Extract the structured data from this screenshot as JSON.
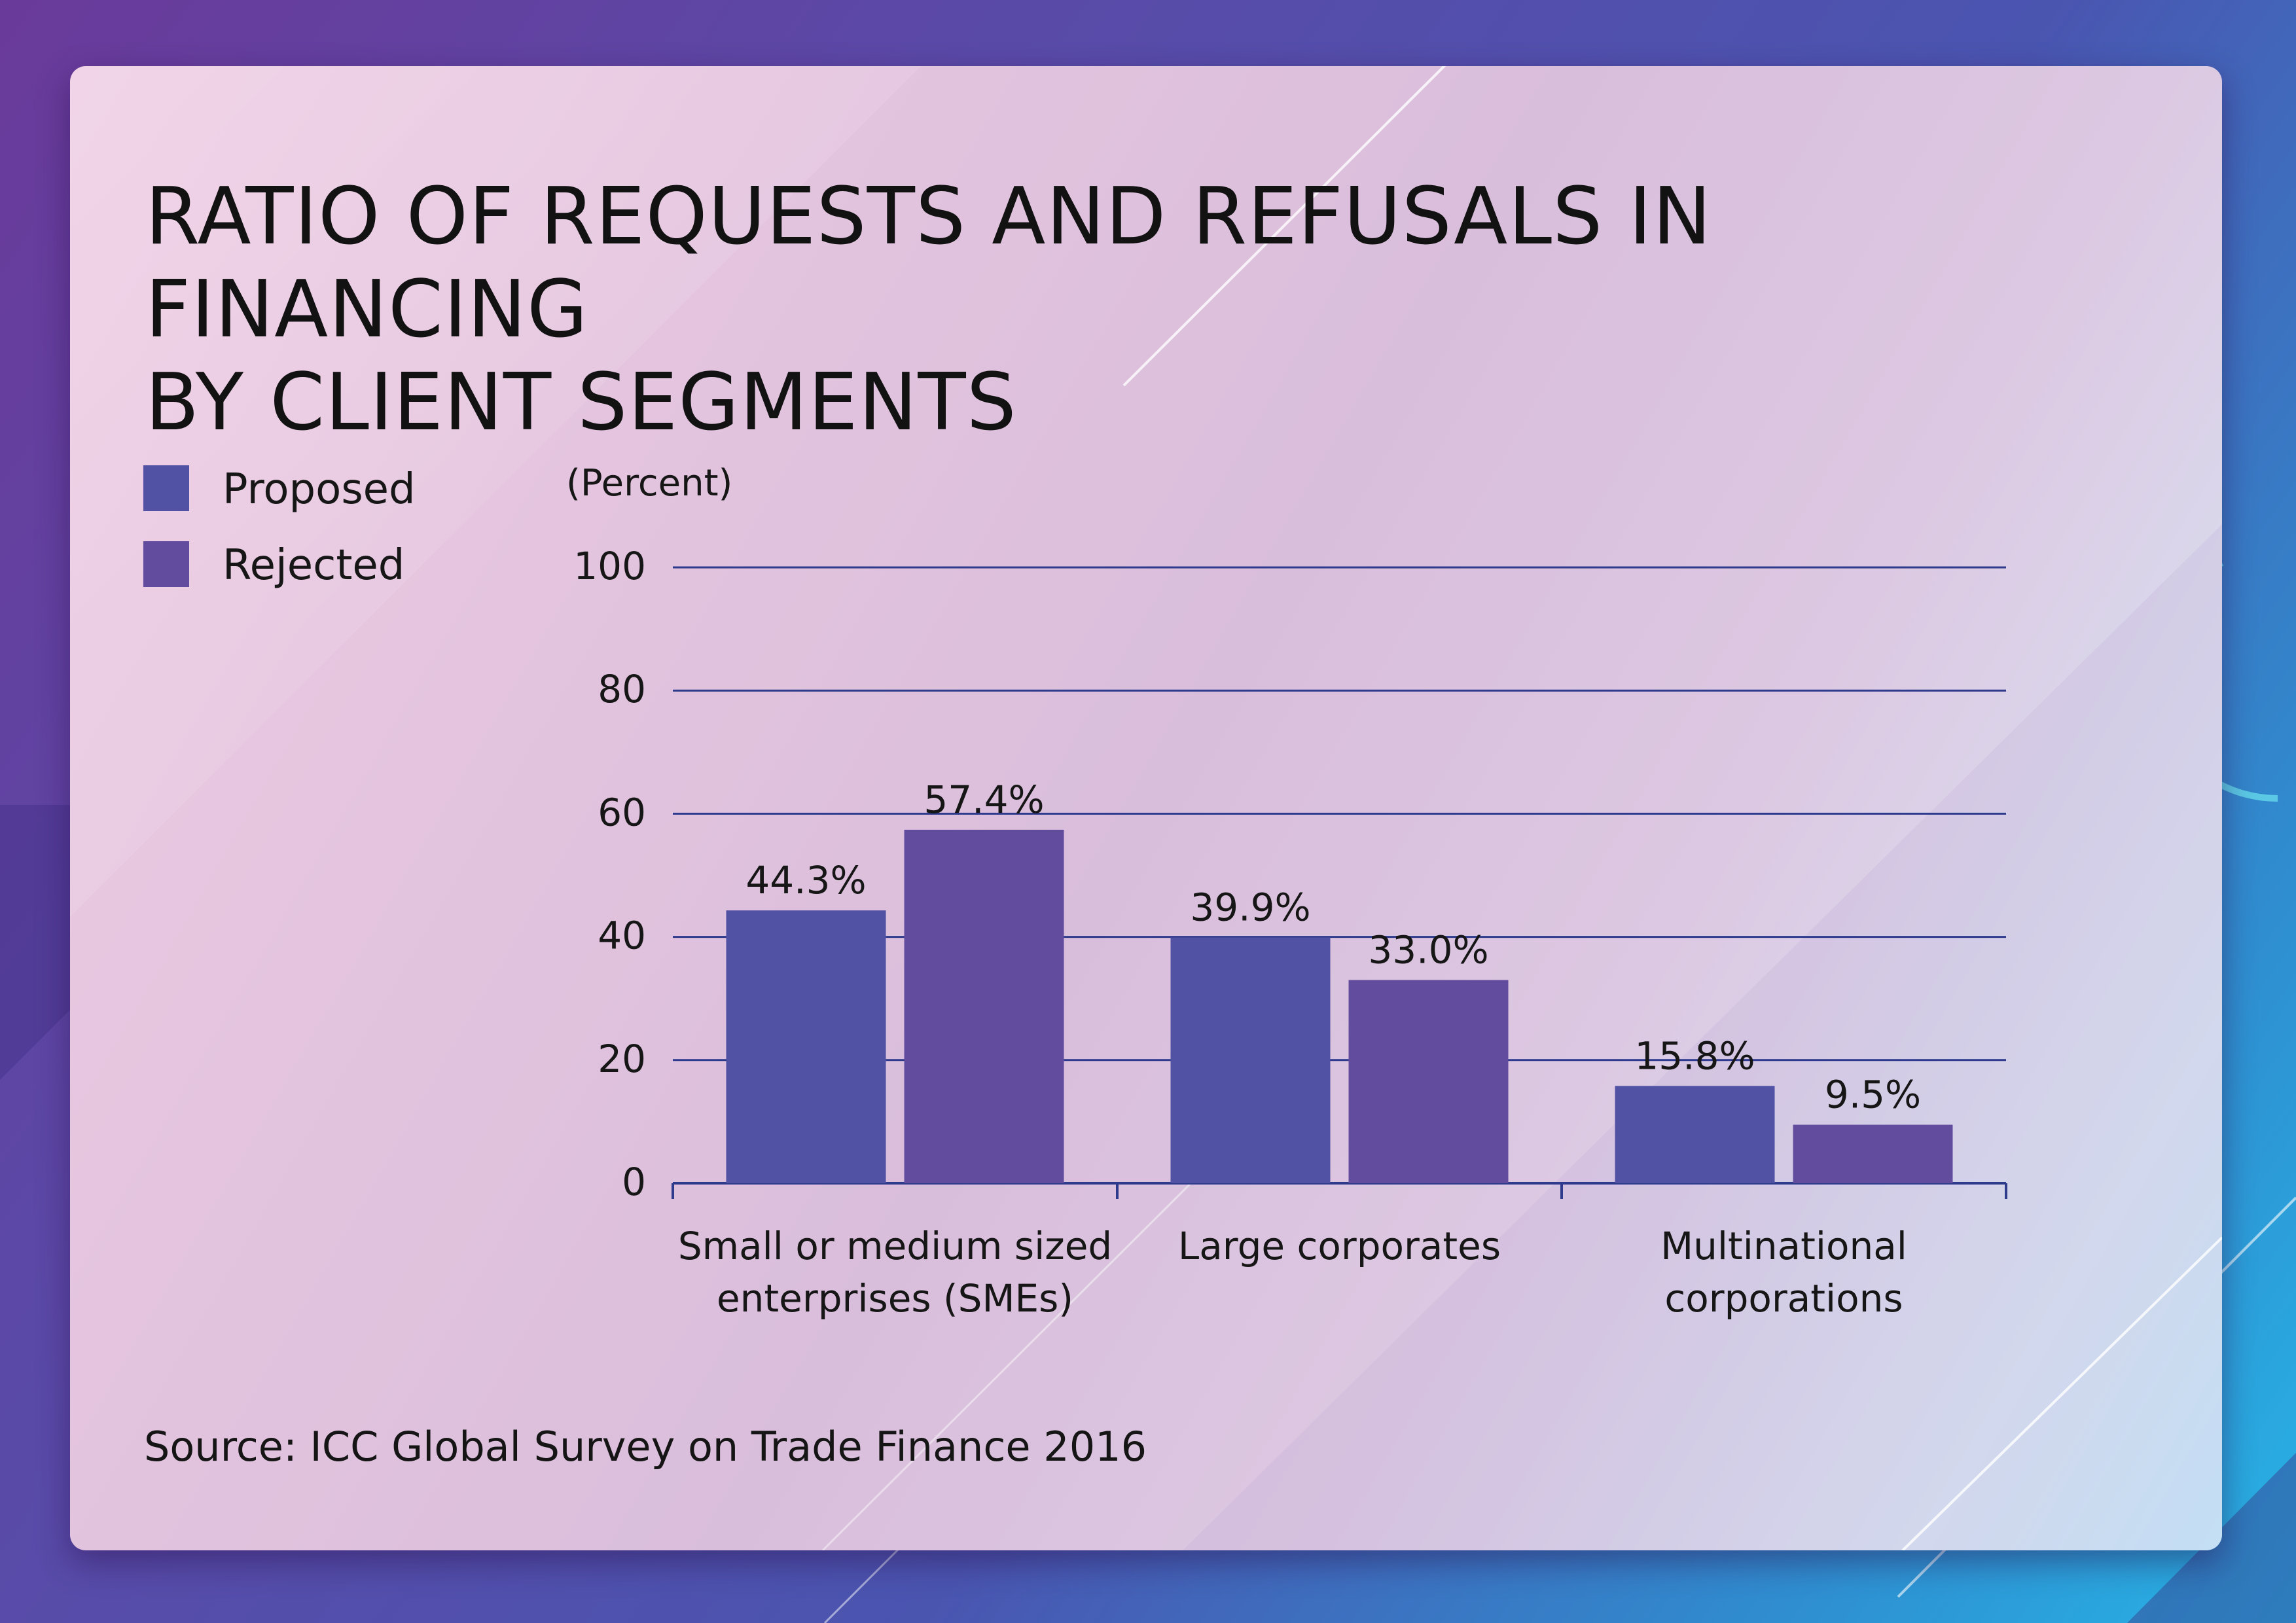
{
  "title": {
    "line1": "RATIO OF REQUESTS AND REFUSALS IN FINANCING",
    "line2": "BY CLIENT SEGMENTS"
  },
  "legend": [
    {
      "label": "Proposed",
      "color": "#5152a3"
    },
    {
      "label": "Rejected",
      "color": "#624c9e"
    }
  ],
  "source": "Source:  ICC Global Survey on Trade Finance 2016",
  "chart_data": {
    "type": "bar",
    "title": "RATIO OF REQUESTS AND REFUSALS IN FINANCING BY CLIENT SEGMENTS",
    "ylabel": "(Percent)",
    "xlabel": "",
    "ylim": [
      0,
      100
    ],
    "yticks": [
      0,
      20,
      40,
      60,
      80,
      100
    ],
    "grid": true,
    "legend_position": "left",
    "categories": [
      [
        "Small or medium sized",
        "enterprises (SMEs)"
      ],
      [
        "Large corporates"
      ],
      [
        "Multinational",
        "corporations"
      ]
    ],
    "series": [
      {
        "name": "Proposed",
        "values": [
          44.3,
          39.9,
          15.8
        ],
        "labels": [
          "44.3%",
          "39.9%",
          "15.8%"
        ],
        "color": "#5152a3"
      },
      {
        "name": "Rejected",
        "values": [
          57.4,
          33.0,
          9.5
        ],
        "labels": [
          "57.4%",
          "33.0%",
          "9.5%"
        ],
        "color": "#624c9e"
      }
    ]
  }
}
